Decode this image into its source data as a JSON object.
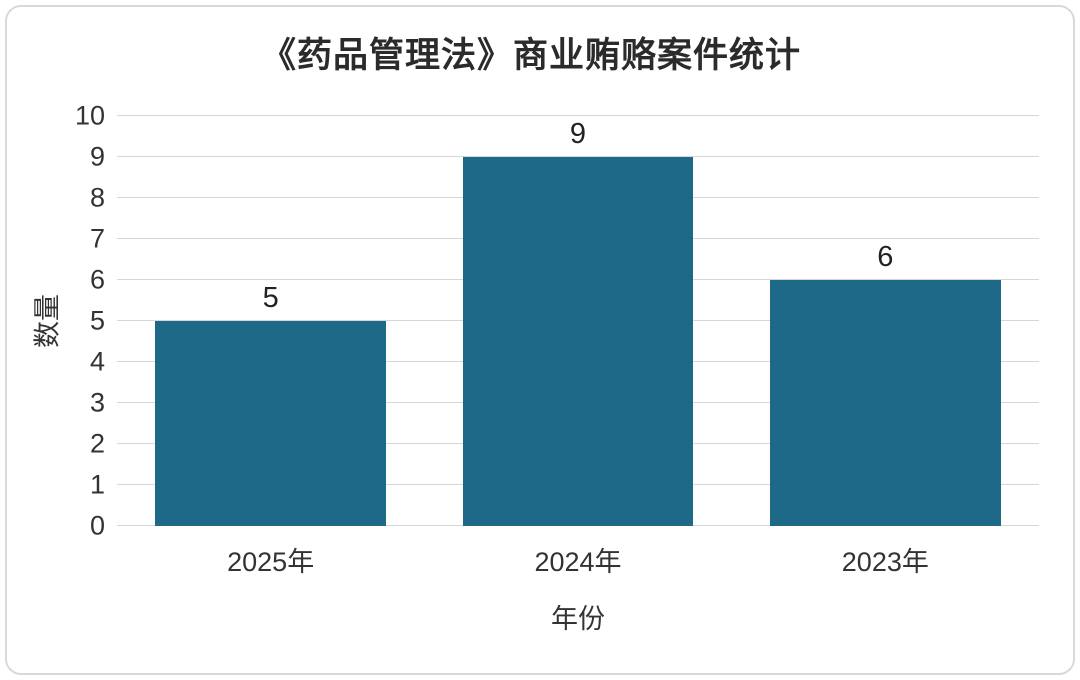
{
  "title": "《药品管理法》商业贿赂案件统计",
  "chart_data": {
    "type": "bar",
    "title": "《药品管理法》商业贿赂案件统计",
    "categories": [
      "2025年",
      "2024年",
      "2023年"
    ],
    "values": [
      5,
      9,
      6
    ],
    "xlabel": "年份",
    "ylabel": "数量",
    "ylim": [
      0,
      10
    ],
    "ytick_step": 1,
    "grid": true,
    "legend": "none",
    "bar_color": "#1e6987",
    "gridline_color": "#d7d7d7",
    "text_color": "#333333"
  }
}
